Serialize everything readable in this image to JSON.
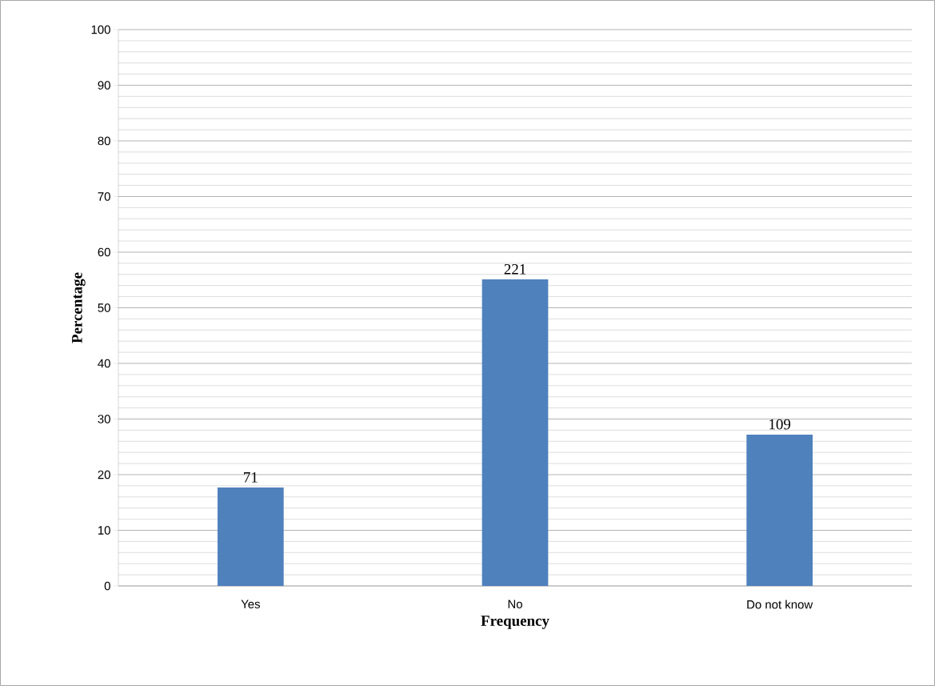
{
  "chart_data": {
    "type": "bar",
    "xlabel": "Frequency",
    "ylabel": "Percentage",
    "categories": [
      "Yes",
      "No",
      "Do not know"
    ],
    "values": [
      17.7,
      55.1,
      27.2
    ],
    "annotations": [
      {
        "text": "71",
        "x": "Yes",
        "y": 17.7
      },
      {
        "text": "221",
        "x": "No",
        "y": 55.1
      },
      {
        "text": "109",
        "x": "Do not know",
        "y": 27.2
      }
    ],
    "color": "#4f81bd",
    "ylim": [
      0,
      100
    ],
    "yticks": [
      0,
      10,
      20,
      30,
      40,
      50,
      60,
      70,
      80,
      90,
      100
    ],
    "grid": "y"
  }
}
